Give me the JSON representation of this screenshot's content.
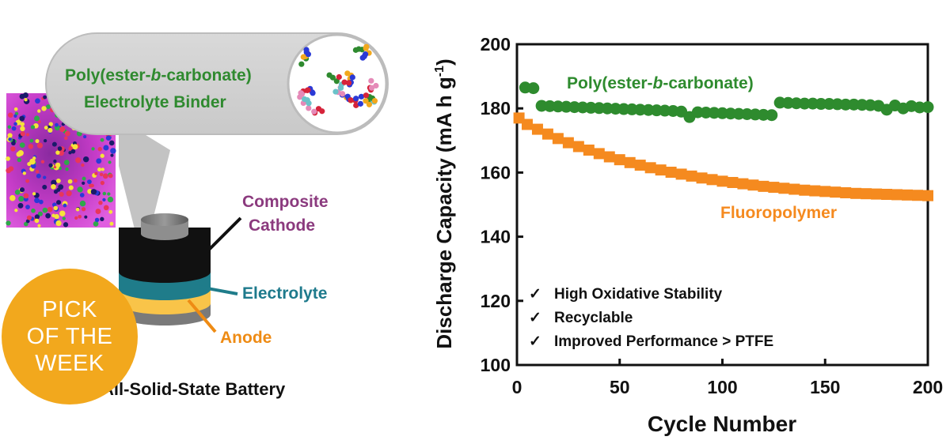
{
  "illustration": {
    "binder_label": [
      "Poly(ester-",
      "b",
      "-carbonate)"
    ],
    "binder_label_line2": "Electrolyte Binder",
    "cathode_label": [
      "Composite",
      "Cathode"
    ],
    "electrolyte_label": "Electrolyte",
    "anode_label": "Anode",
    "battery_caption": "All-Solid-State Battery",
    "colors": {
      "binder_text": "#2f8a2f",
      "cathode_text": "#8b3a7e",
      "electrolyte_text": "#1e7a8c",
      "anode_text": "#ee8b14",
      "cathode_layer": "#111111",
      "electrolyte_layer": "#1f7c8a",
      "anode_layer": "#f9c449"
    }
  },
  "badge": {
    "lines": [
      "PICK",
      "OF THE",
      "WEEK"
    ],
    "color": "#f2a81d"
  },
  "chart_data": {
    "type": "scatter",
    "xlabel": "Cycle Number",
    "ylabel": "Discharge Capacity (mA h g-1)",
    "ylabel_parts": [
      "Discharge Capacity (mA h g",
      "-1",
      ")"
    ],
    "xlim": [
      0,
      200
    ],
    "ylim": [
      100,
      200
    ],
    "xticks": [
      0,
      50,
      100,
      150,
      200
    ],
    "yticks": [
      100,
      120,
      140,
      160,
      180,
      200
    ],
    "series": [
      {
        "name": "Poly(ester-b-carbonate)",
        "name_parts": [
          "Poly(ester-",
          "b",
          "-carbonate)"
        ],
        "color": "#2e8b2e",
        "marker": "circle",
        "x": [
          4,
          8,
          12,
          16,
          20,
          24,
          28,
          32,
          36,
          40,
          44,
          48,
          52,
          56,
          60,
          64,
          68,
          72,
          76,
          80,
          84,
          88,
          92,
          96,
          100,
          104,
          108,
          112,
          116,
          120,
          124,
          128,
          132,
          136,
          140,
          144,
          148,
          152,
          156,
          160,
          164,
          168,
          172,
          176,
          180,
          184,
          188,
          192,
          196,
          200
        ],
        "y": [
          186.5,
          186.3,
          180.8,
          180.7,
          180.6,
          180.5,
          180.4,
          180.3,
          180.2,
          180.1,
          180.0,
          179.9,
          179.8,
          179.7,
          179.6,
          179.5,
          179.4,
          179.3,
          179.2,
          179.0,
          177.3,
          178.8,
          178.7,
          178.6,
          178.5,
          178.4,
          178.3,
          178.2,
          178.1,
          178.0,
          177.9,
          181.8,
          181.7,
          181.6,
          181.5,
          181.5,
          181.4,
          181.4,
          181.3,
          181.2,
          181.2,
          181.1,
          181.0,
          180.8,
          179.6,
          180.9,
          180.0,
          180.7,
          180.3,
          180.4
        ]
      },
      {
        "name": "Fluoropolymer",
        "color": "#f58a1f",
        "marker": "square",
        "x": [
          1,
          5,
          10,
          15,
          20,
          25,
          30,
          35,
          40,
          45,
          50,
          55,
          60,
          65,
          70,
          75,
          80,
          85,
          90,
          95,
          100,
          105,
          110,
          115,
          120,
          125,
          130,
          135,
          140,
          145,
          150,
          155,
          160,
          165,
          170,
          175,
          180,
          185,
          190,
          195,
          200
        ],
        "y": [
          177.0,
          175.0,
          173.5,
          172.0,
          170.6,
          169.3,
          168.1,
          167.0,
          165.9,
          164.9,
          164.0,
          163.1,
          162.3,
          161.5,
          160.8,
          160.1,
          159.5,
          158.9,
          158.3,
          157.8,
          157.3,
          156.9,
          156.5,
          156.1,
          155.7,
          155.4,
          155.1,
          154.8,
          154.5,
          154.3,
          154.1,
          153.9,
          153.7,
          153.5,
          153.4,
          153.3,
          153.2,
          153.1,
          153.0,
          152.9,
          152.8
        ]
      }
    ],
    "annotations": [
      "High Oxidative Stability",
      "Recyclable",
      "Improved Performance > PTFE"
    ],
    "check_glyph": "✓",
    "grid": false
  }
}
